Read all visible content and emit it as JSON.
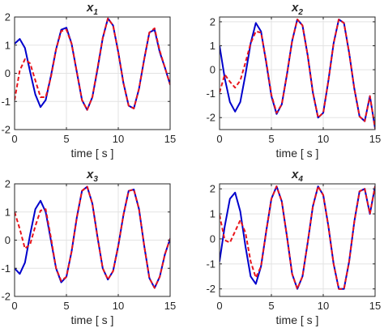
{
  "colors": {
    "actual": "#0000cc",
    "estimate": "#e8141b"
  },
  "chart_data": [
    {
      "type": "line",
      "title": {
        "main": "x",
        "sub": "1"
      },
      "xlabel": "time [ s ]",
      "ylabel": "",
      "xlim": [
        0,
        15
      ],
      "ylim": [
        -2,
        2
      ],
      "xticks": [
        0,
        5,
        10,
        15
      ],
      "xtick_labels": [
        "0",
        "5",
        "10",
        "15"
      ],
      "yticks": [
        -2,
        -1,
        0,
        1,
        2
      ],
      "ytick_labels": [
        "-2",
        "-1",
        "0",
        "1",
        "2"
      ],
      "grid": true,
      "series": [
        {
          "style": "solid",
          "color": "#0000cc",
          "x": [
            0,
            0.5,
            1.0,
            1.5,
            2.0,
            2.5,
            3.0,
            3.5,
            4.0,
            4.5,
            5.0,
            5.5,
            6.0,
            6.5,
            7.0,
            7.5,
            8.0,
            8.5,
            9.0,
            9.5,
            10.0,
            10.5,
            11.0,
            11.5,
            12.0,
            12.5,
            13.0,
            13.5,
            14.0,
            14.5,
            15.0
          ],
          "y": [
            1.05,
            1.22,
            0.9,
            0.05,
            -0.75,
            -1.2,
            -0.95,
            -0.1,
            0.85,
            1.55,
            1.62,
            1.05,
            0.05,
            -0.95,
            -1.3,
            -0.85,
            0.15,
            1.25,
            1.95,
            1.7,
            0.75,
            -0.35,
            -1.15,
            -1.25,
            -0.55,
            0.5,
            1.45,
            1.55,
            0.75,
            0.2,
            -0.4
          ]
        },
        {
          "style": "dashed",
          "color": "#e8141b",
          "x": [
            0,
            0.5,
            1.0,
            1.5,
            2.0,
            2.5,
            3.0,
            3.5,
            4.0,
            4.5,
            5.0,
            5.5,
            6.0,
            6.5,
            7.0,
            7.5,
            8.0,
            8.5,
            9.0,
            9.5,
            10.0,
            10.5,
            11.0,
            11.5,
            12.0,
            12.5,
            13.0,
            13.5,
            14.0,
            14.5,
            15.0
          ],
          "y": [
            -0.95,
            0.1,
            0.5,
            0.35,
            -0.25,
            -0.85,
            -0.85,
            -0.15,
            0.85,
            1.5,
            1.55,
            1.05,
            0.05,
            -0.95,
            -1.3,
            -0.85,
            0.2,
            1.25,
            1.95,
            1.7,
            0.75,
            -0.35,
            -1.15,
            -1.25,
            -0.55,
            0.5,
            1.45,
            1.6,
            0.8,
            0.2,
            -0.4
          ]
        }
      ]
    },
    {
      "type": "line",
      "title": {
        "main": "x",
        "sub": "2"
      },
      "xlabel": "time [ s ]",
      "ylabel": "",
      "xlim": [
        0,
        15
      ],
      "ylim": [
        -2.5,
        2.2
      ],
      "xticks": [
        0,
        5,
        10,
        15
      ],
      "xtick_labels": [
        "0",
        "5",
        "10",
        "15"
      ],
      "yticks": [
        -2,
        -1,
        0,
        1,
        2
      ],
      "ytick_labels": [
        "-2",
        "-1",
        "0",
        "1",
        "2"
      ],
      "grid": true,
      "series": [
        {
          "style": "solid",
          "color": "#0000cc",
          "x": [
            0,
            0.5,
            1.0,
            1.5,
            2.0,
            2.5,
            3.0,
            3.5,
            4.0,
            4.5,
            5.0,
            5.5,
            6.0,
            6.5,
            7.0,
            7.5,
            8.0,
            8.5,
            9.0,
            9.5,
            10.0,
            10.5,
            11.0,
            11.5,
            12.0,
            12.5,
            13.0,
            13.5,
            14.0,
            14.5,
            15.0
          ],
          "y": [
            1.0,
            -0.35,
            -1.35,
            -1.75,
            -1.35,
            -0.2,
            1.1,
            1.95,
            1.6,
            0.3,
            -1.1,
            -1.85,
            -1.45,
            -0.2,
            1.2,
            2.1,
            1.85,
            0.6,
            -0.95,
            -2.0,
            -1.8,
            -0.45,
            1.1,
            2.1,
            1.95,
            0.7,
            -0.8,
            -1.95,
            -2.15,
            -1.1,
            -2.45
          ]
        },
        {
          "style": "dashed",
          "color": "#e8141b",
          "x": [
            0,
            0.5,
            1.0,
            1.5,
            2.0,
            2.5,
            3.0,
            3.5,
            4.0,
            4.5,
            5.0,
            5.5,
            6.0,
            6.5,
            7.0,
            7.5,
            8.0,
            8.5,
            9.0,
            9.5,
            10.0,
            10.5,
            11.0,
            11.5,
            12.0,
            12.5,
            13.0,
            13.5,
            14.0,
            14.5,
            15.0
          ],
          "y": [
            -0.95,
            -0.2,
            -0.5,
            -0.75,
            -0.45,
            0.3,
            1.1,
            1.6,
            1.55,
            0.35,
            -1.05,
            -1.8,
            -1.45,
            -0.2,
            1.2,
            2.1,
            1.85,
            0.6,
            -0.95,
            -2.0,
            -1.8,
            -0.45,
            1.1,
            2.1,
            1.95,
            0.7,
            -0.8,
            -1.95,
            -2.15,
            -1.1,
            -2.45
          ]
        }
      ]
    },
    {
      "type": "line",
      "title": {
        "main": "x",
        "sub": "3"
      },
      "xlabel": "time [ s ]",
      "ylabel": "",
      "xlim": [
        0,
        15
      ],
      "ylim": [
        -2,
        2
      ],
      "xticks": [
        0,
        5,
        10,
        15
      ],
      "xtick_labels": [
        "0",
        "5",
        "10",
        "15"
      ],
      "yticks": [
        -2,
        -1,
        0,
        1,
        2
      ],
      "ytick_labels": [
        "-2",
        "-1",
        "0",
        "1",
        "2"
      ],
      "grid": true,
      "series": [
        {
          "style": "solid",
          "color": "#0000cc",
          "x": [
            0,
            0.5,
            1.0,
            1.5,
            2.0,
            2.5,
            3.0,
            3.5,
            4.0,
            4.5,
            5.0,
            5.5,
            6.0,
            6.5,
            7.0,
            7.5,
            8.0,
            8.5,
            9.0,
            9.5,
            10.0,
            10.5,
            11.0,
            11.5,
            12.0,
            12.5,
            13.0,
            13.5,
            14.0,
            14.5,
            15.0
          ],
          "y": [
            -1.0,
            -1.2,
            -0.8,
            0.2,
            1.1,
            1.4,
            1.0,
            0.0,
            -1.0,
            -1.5,
            -1.3,
            -0.4,
            0.8,
            1.75,
            1.9,
            1.3,
            0.1,
            -1.0,
            -1.4,
            -1.1,
            -0.2,
            0.9,
            1.75,
            1.8,
            1.1,
            -0.2,
            -1.35,
            -1.7,
            -1.3,
            -0.5,
            0.05
          ]
        },
        {
          "style": "dashed",
          "color": "#e8141b",
          "x": [
            0,
            0.5,
            1.0,
            1.5,
            2.0,
            2.5,
            3.0,
            3.5,
            4.0,
            4.5,
            5.0,
            5.5,
            6.0,
            6.5,
            7.0,
            7.5,
            8.0,
            8.5,
            9.0,
            9.5,
            10.0,
            10.5,
            11.0,
            11.5,
            12.0,
            12.5,
            13.0,
            13.5,
            14.0,
            14.5,
            15.0
          ],
          "y": [
            1.0,
            0.4,
            -0.3,
            -0.15,
            0.5,
            1.05,
            1.1,
            0.1,
            -1.0,
            -1.45,
            -1.3,
            -0.4,
            0.8,
            1.75,
            1.9,
            1.3,
            0.1,
            -1.0,
            -1.4,
            -1.1,
            -0.2,
            0.9,
            1.75,
            1.8,
            1.1,
            -0.2,
            -1.35,
            -1.7,
            -1.3,
            -0.5,
            0.05
          ]
        }
      ]
    },
    {
      "type": "line",
      "title": {
        "main": "x",
        "sub": "4"
      },
      "xlabel": "time [ s ]",
      "ylabel": "",
      "xlim": [
        0,
        15
      ],
      "ylim": [
        -2.3,
        2.2
      ],
      "xticks": [
        0,
        5,
        10,
        15
      ],
      "xtick_labels": [
        "0",
        "5",
        "10",
        "15"
      ],
      "yticks": [
        -2,
        -1,
        0,
        1,
        2
      ],
      "ytick_labels": [
        "-2",
        "-1",
        "0",
        "1",
        "2"
      ],
      "grid": true,
      "series": [
        {
          "style": "solid",
          "color": "#0000cc",
          "x": [
            0,
            0.5,
            1.0,
            1.5,
            2.0,
            2.5,
            3.0,
            3.5,
            4.0,
            4.5,
            5.0,
            5.5,
            6.0,
            6.5,
            7.0,
            7.5,
            8.0,
            8.5,
            9.0,
            9.5,
            10.0,
            10.5,
            11.0,
            11.5,
            12.0,
            12.5,
            13.0,
            13.5,
            14.0,
            14.5,
            15.0
          ],
          "y": [
            -0.9,
            0.5,
            1.6,
            1.85,
            1.1,
            -0.3,
            -1.5,
            -1.8,
            -1.1,
            0.3,
            1.6,
            2.1,
            1.5,
            0.1,
            -1.4,
            -2.0,
            -1.5,
            -0.15,
            1.3,
            2.1,
            1.75,
            0.5,
            -1.0,
            -2.0,
            -2.0,
            -0.9,
            0.7,
            1.9,
            2.0,
            1.0,
            2.1
          ]
        },
        {
          "style": "dashed",
          "color": "#e8141b",
          "x": [
            0,
            0.5,
            1.0,
            1.5,
            2.0,
            2.5,
            3.0,
            3.5,
            4.0,
            4.5,
            5.0,
            5.5,
            6.0,
            6.5,
            7.0,
            7.5,
            8.0,
            8.5,
            9.0,
            9.5,
            10.0,
            10.5,
            11.0,
            11.5,
            12.0,
            12.5,
            13.0,
            13.5,
            14.0,
            14.5,
            15.0
          ],
          "y": [
            0.95,
            -0.05,
            -0.15,
            0.3,
            0.75,
            0.25,
            -0.9,
            -1.55,
            -1.1,
            0.3,
            1.6,
            2.1,
            1.5,
            0.1,
            -1.4,
            -2.0,
            -1.5,
            -0.15,
            1.3,
            2.1,
            1.75,
            0.5,
            -1.0,
            -2.0,
            -2.0,
            -0.9,
            0.7,
            1.9,
            2.0,
            1.0,
            2.1
          ]
        }
      ]
    }
  ]
}
